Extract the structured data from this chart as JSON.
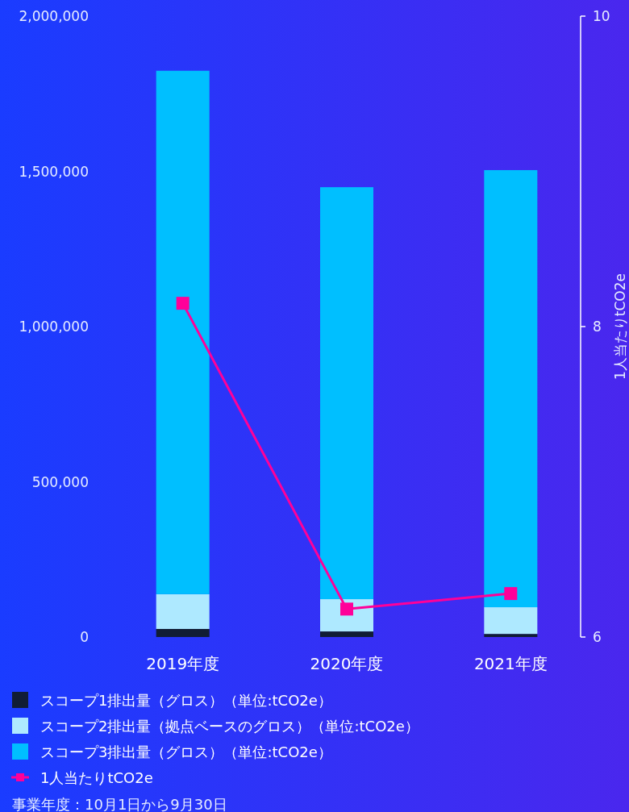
{
  "chart_data": {
    "type": "bar",
    "stacked": true,
    "categories": [
      "2019年度",
      "2020年度",
      "2021年度"
    ],
    "series": [
      {
        "name": "スコープ1排出量（グロス）（単位:tCO2e）",
        "color": "#111d35",
        "values": [
          26000,
          18000,
          10000
        ]
      },
      {
        "name": "スコープ2排出量（拠点ベースのグロス）（単位:tCO2e）",
        "color": "#aee9ff",
        "values": [
          112000,
          104000,
          86000
        ]
      },
      {
        "name": "スコープ3排出量（グロス）（単位:tCO2e）",
        "color": "#00bfff",
        "values": [
          1686000,
          1327000,
          1408000
        ]
      },
      {
        "name": "1人当たりtCO2e",
        "type": "line",
        "axis": "y2",
        "color": "#ff0099",
        "marker": "square",
        "values": [
          8.15,
          6.18,
          6.28
        ]
      }
    ],
    "ylim": [
      0,
      2000000
    ],
    "yticks": [
      {
        "value": 0,
        "label": "0"
      },
      {
        "value": 500000,
        "label": "500,000"
      },
      {
        "value": 1000000,
        "label": "1,000,000"
      },
      {
        "value": 1500000,
        "label": "1,500,000"
      },
      {
        "value": 2000000,
        "label": "2,000,000"
      }
    ],
    "y2lim": [
      6,
      10
    ],
    "y2ticks": [
      6,
      8,
      10
    ],
    "y2label": "1人当たりtCO2e",
    "legend": "bottom",
    "grid": false,
    "annotations": [
      "事業年度：10月1日から9月30日"
    ]
  }
}
